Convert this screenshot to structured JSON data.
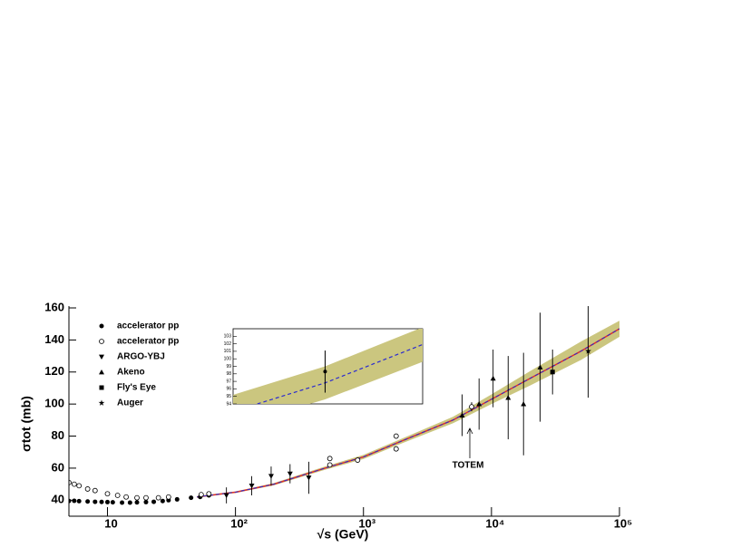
{
  "chart_data": {
    "type": "scatter",
    "xlabel": "√s (GeV)",
    "ylabel": "σtot (mb)",
    "xscale": "log",
    "xlim": [
      5,
      100000
    ],
    "xticks": [
      10,
      {
        "value": 100,
        "label": "10²"
      },
      {
        "value": 1000,
        "label": "10³"
      },
      {
        "value": 10000,
        "label": "10⁴"
      },
      {
        "value": 100000,
        "label": "10⁵"
      }
    ],
    "ylim": [
      30,
      160
    ],
    "yticks": [
      40,
      60,
      80,
      100,
      120,
      140,
      160
    ],
    "legend": "upper-left",
    "series": [
      {
        "name": "accelerator pp",
        "marker": "circle",
        "color": "#000000",
        "x": [
          5,
          5.5,
          6,
          7,
          8,
          9,
          10,
          11,
          13,
          15,
          17,
          20,
          23,
          27,
          30,
          35,
          45,
          53,
          62
        ],
        "values": [
          39.5,
          39.6,
          39.4,
          39.2,
          39,
          38.9,
          38.8,
          38.7,
          38.5,
          38.5,
          38.6,
          38.8,
          39,
          39.5,
          40,
          40.5,
          41.5,
          42,
          43
        ]
      },
      {
        "name": "accelerator p̅p",
        "marker": "open-circle",
        "color": "#000000",
        "x": [
          5,
          5.5,
          6,
          7,
          8,
          10,
          12,
          14,
          17,
          20,
          25,
          30,
          54,
          62,
          546,
          546,
          900,
          1800,
          1800
        ],
        "values": [
          51,
          50,
          49,
          47,
          46,
          44,
          43,
          42,
          41.5,
          41.5,
          41.5,
          42,
          43.5,
          44,
          62,
          66,
          65,
          72,
          80
        ]
      },
      {
        "name": "ARGO-YBJ",
        "marker": "triangle-down",
        "color": "#000000",
        "x": [
          85,
          134,
          190,
          267,
          374
        ],
        "values": [
          43,
          49,
          55,
          56.5,
          54
        ],
        "errors": [
          5,
          6,
          6,
          6,
          10
        ]
      },
      {
        "name": "Akeno",
        "marker": "triangle-up",
        "color": "#000000",
        "x": [
          5900,
          8000,
          10300,
          13500,
          17800,
          24000
        ],
        "values": [
          93,
          100,
          116,
          104,
          100,
          123
        ],
        "errors": [
          13,
          16,
          18,
          26,
          32,
          34
        ]
      },
      {
        "name": "Fly's Eye",
        "marker": "square",
        "color": "#000000",
        "x": [
          30000
        ],
        "values": [
          120
        ],
        "errors": [
          14
        ]
      },
      {
        "name": "Auger",
        "marker": "star",
        "color": "#000000",
        "x": [
          57000
        ],
        "values": [
          133
        ],
        "errors": [
          29
        ]
      }
    ],
    "totem": {
      "x": 7000,
      "value": 98.3,
      "error": 2.8,
      "label": "TOTEM"
    },
    "fit": {
      "line_color": "#e0302a",
      "dash_color": "#2a2ad0",
      "band_color": "#cbc67f",
      "x": [
        50,
        100,
        200,
        500,
        1000,
        2000,
        5000,
        10000,
        20000,
        50000,
        100000
      ],
      "values": [
        42,
        45,
        50,
        60,
        67,
        77,
        90,
        103,
        116,
        133,
        147
      ],
      "upper": [
        42.5,
        45.5,
        50.7,
        61,
        68.3,
        78.5,
        92,
        106,
        120.5,
        139,
        152
      ],
      "lower": [
        41.5,
        44.5,
        49.3,
        59,
        65.7,
        75.5,
        88,
        100,
        111.5,
        127.5,
        142
      ]
    },
    "inset": {
      "xlim": [
        5000,
        10000
      ],
      "ylim": [
        94,
        104
      ],
      "yticks": [
        94,
        95,
        96,
        97,
        98,
        99,
        100,
        101,
        102,
        103
      ],
      "x": [
        5000,
        7000,
        10000
      ],
      "values": [
        93,
        96.8,
        101.9
      ],
      "upper": [
        95.2,
        99,
        104.2
      ],
      "lower": [
        91,
        94.6,
        99.6
      ]
    }
  }
}
